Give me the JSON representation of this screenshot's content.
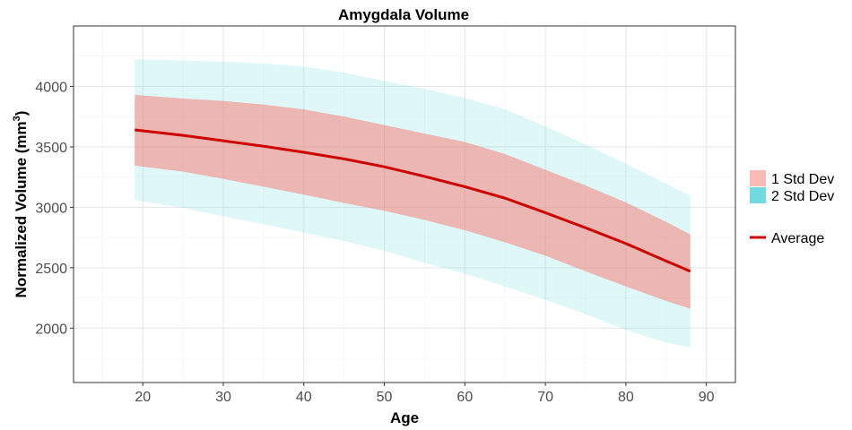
{
  "chart_data": {
    "type": "area",
    "title": "Amygdala Volume",
    "xlabel": "Age",
    "ylabel_main": "Normalized Volume  (mm",
    "ylabel_sup": "3",
    "ylabel_close": ")",
    "xlim": [
      11.4,
      93.6
    ],
    "ylim": [
      1550,
      4500
    ],
    "x_ticks": [
      20,
      30,
      40,
      50,
      60,
      70,
      80,
      90
    ],
    "y_ticks": [
      2000,
      2500,
      3000,
      3500,
      4000
    ],
    "grid": true,
    "legend_position": "right",
    "colors": {
      "band1": "#f8766d",
      "band2": "#72d9de",
      "average": "#cc0000",
      "panel_border": "#333333",
      "grid_major": "#e5e5e5",
      "grid_minor": "#f2f2f2"
    },
    "x": [
      19,
      25,
      30,
      35,
      40,
      45,
      50,
      55,
      60,
      65,
      70,
      75,
      80,
      85,
      88
    ],
    "series": [
      {
        "name": "Average",
        "values": [
          3640,
          3595,
          3550,
          3505,
          3455,
          3400,
          3335,
          3255,
          3170,
          3075,
          2955,
          2830,
          2700,
          2555,
          2470
        ]
      },
      {
        "name": "1 Std Dev",
        "upper": [
          3930,
          3900,
          3880,
          3850,
          3810,
          3750,
          3680,
          3610,
          3540,
          3440,
          3310,
          3180,
          3040,
          2880,
          2775
        ],
        "lower": [
          3345,
          3295,
          3235,
          3170,
          3105,
          3035,
          2970,
          2895,
          2810,
          2710,
          2600,
          2470,
          2345,
          2225,
          2160
        ]
      },
      {
        "name": "2 Std Dev",
        "upper": [
          4225,
          4215,
          4205,
          4190,
          4165,
          4115,
          4045,
          3980,
          3905,
          3810,
          3670,
          3520,
          3360,
          3195,
          3095
        ],
        "lower": [
          3060,
          2995,
          2925,
          2860,
          2790,
          2720,
          2640,
          2540,
          2450,
          2345,
          2235,
          2115,
          1985,
          1880,
          1840
        ]
      }
    ],
    "legend": {
      "items": [
        "1 Std Dev",
        "2 Std Dev"
      ],
      "line_item": "Average"
    }
  }
}
